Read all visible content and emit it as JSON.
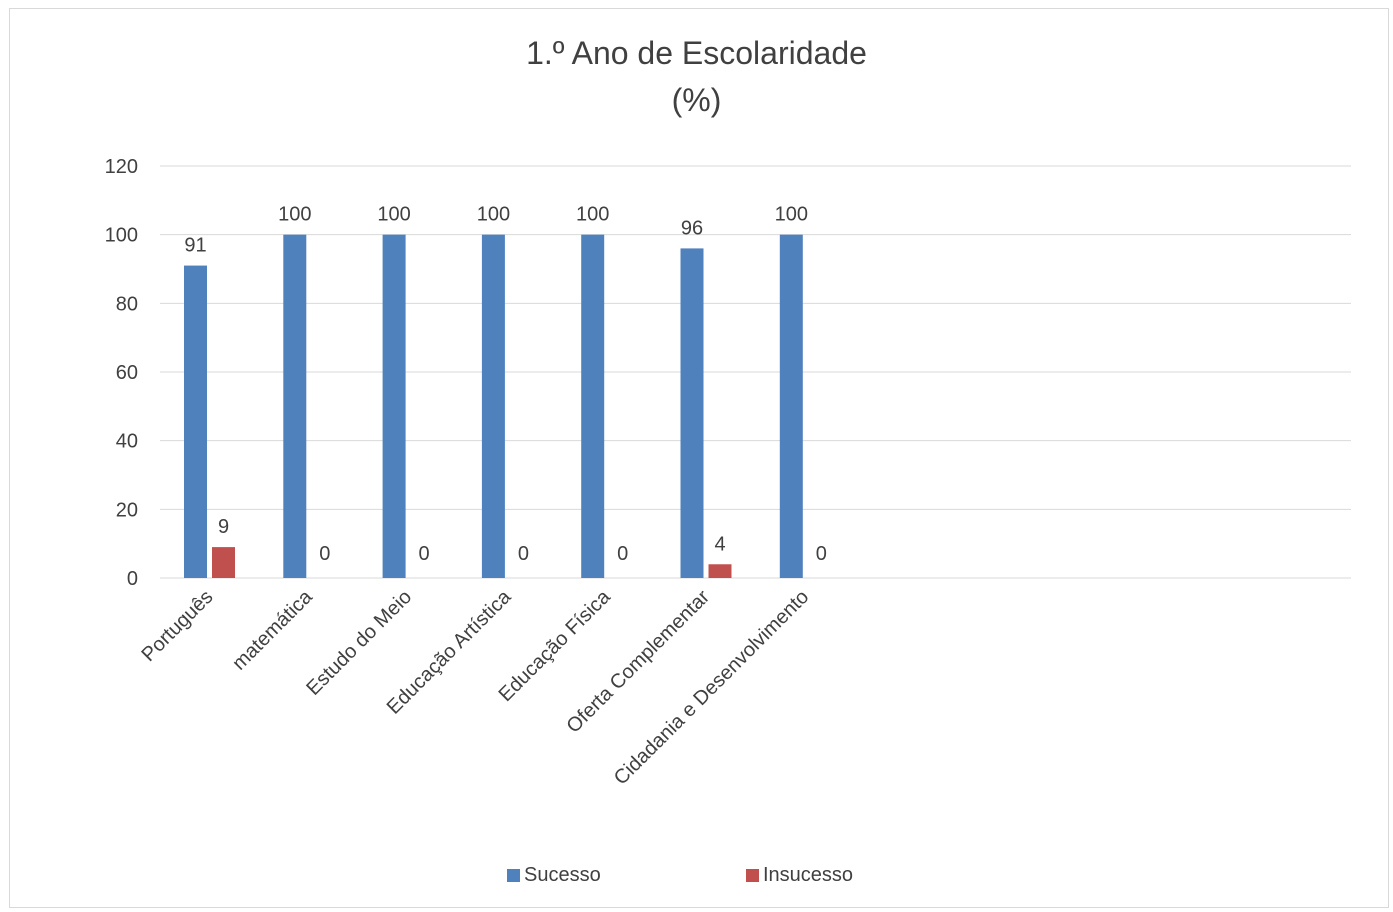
{
  "chart_data": {
    "type": "bar",
    "title": "1.º Ano de Escolaridade",
    "subtitle": "(%)",
    "categories": [
      "Português",
      "matemática",
      "Estudo do Meio",
      "Educação Artística",
      "Educação Física",
      "Oferta Complementar",
      "Cidadania e Desenvolvimento"
    ],
    "series": [
      {
        "name": "Sucesso",
        "values": [
          91,
          100,
          100,
          100,
          100,
          96,
          100
        ],
        "color": "#4f81bd"
      },
      {
        "name": "Insucesso",
        "values": [
          9,
          0,
          0,
          0,
          0,
          4,
          0
        ],
        "color": "#c0504d"
      }
    ],
    "ylim": [
      0,
      120
    ],
    "yticks": [
      0,
      20,
      40,
      60,
      80,
      100,
      120
    ],
    "grid": true,
    "legend_position": "bottom"
  }
}
